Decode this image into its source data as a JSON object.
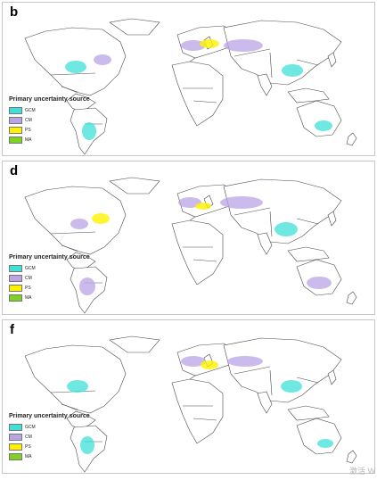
{
  "panels": [
    {
      "letter": "b",
      "legend_title": "Primary uncertainty source"
    },
    {
      "letter": "d",
      "legend_title": "Primary uncertainty source"
    },
    {
      "letter": "f",
      "legend_title": "Primary uncertainty source"
    }
  ],
  "legend_items": [
    {
      "code": "GCM",
      "color": "#40e0d8"
    },
    {
      "code": "CM",
      "color": "#b9a4e6"
    },
    {
      "code": "PS",
      "color": "#fff200"
    },
    {
      "code": "MA",
      "color": "#7ed321"
    }
  ],
  "colors": {
    "land_outline": "#4a4a4a",
    "border_lines": "#9a9a9a"
  },
  "watermark": "激活 W"
}
